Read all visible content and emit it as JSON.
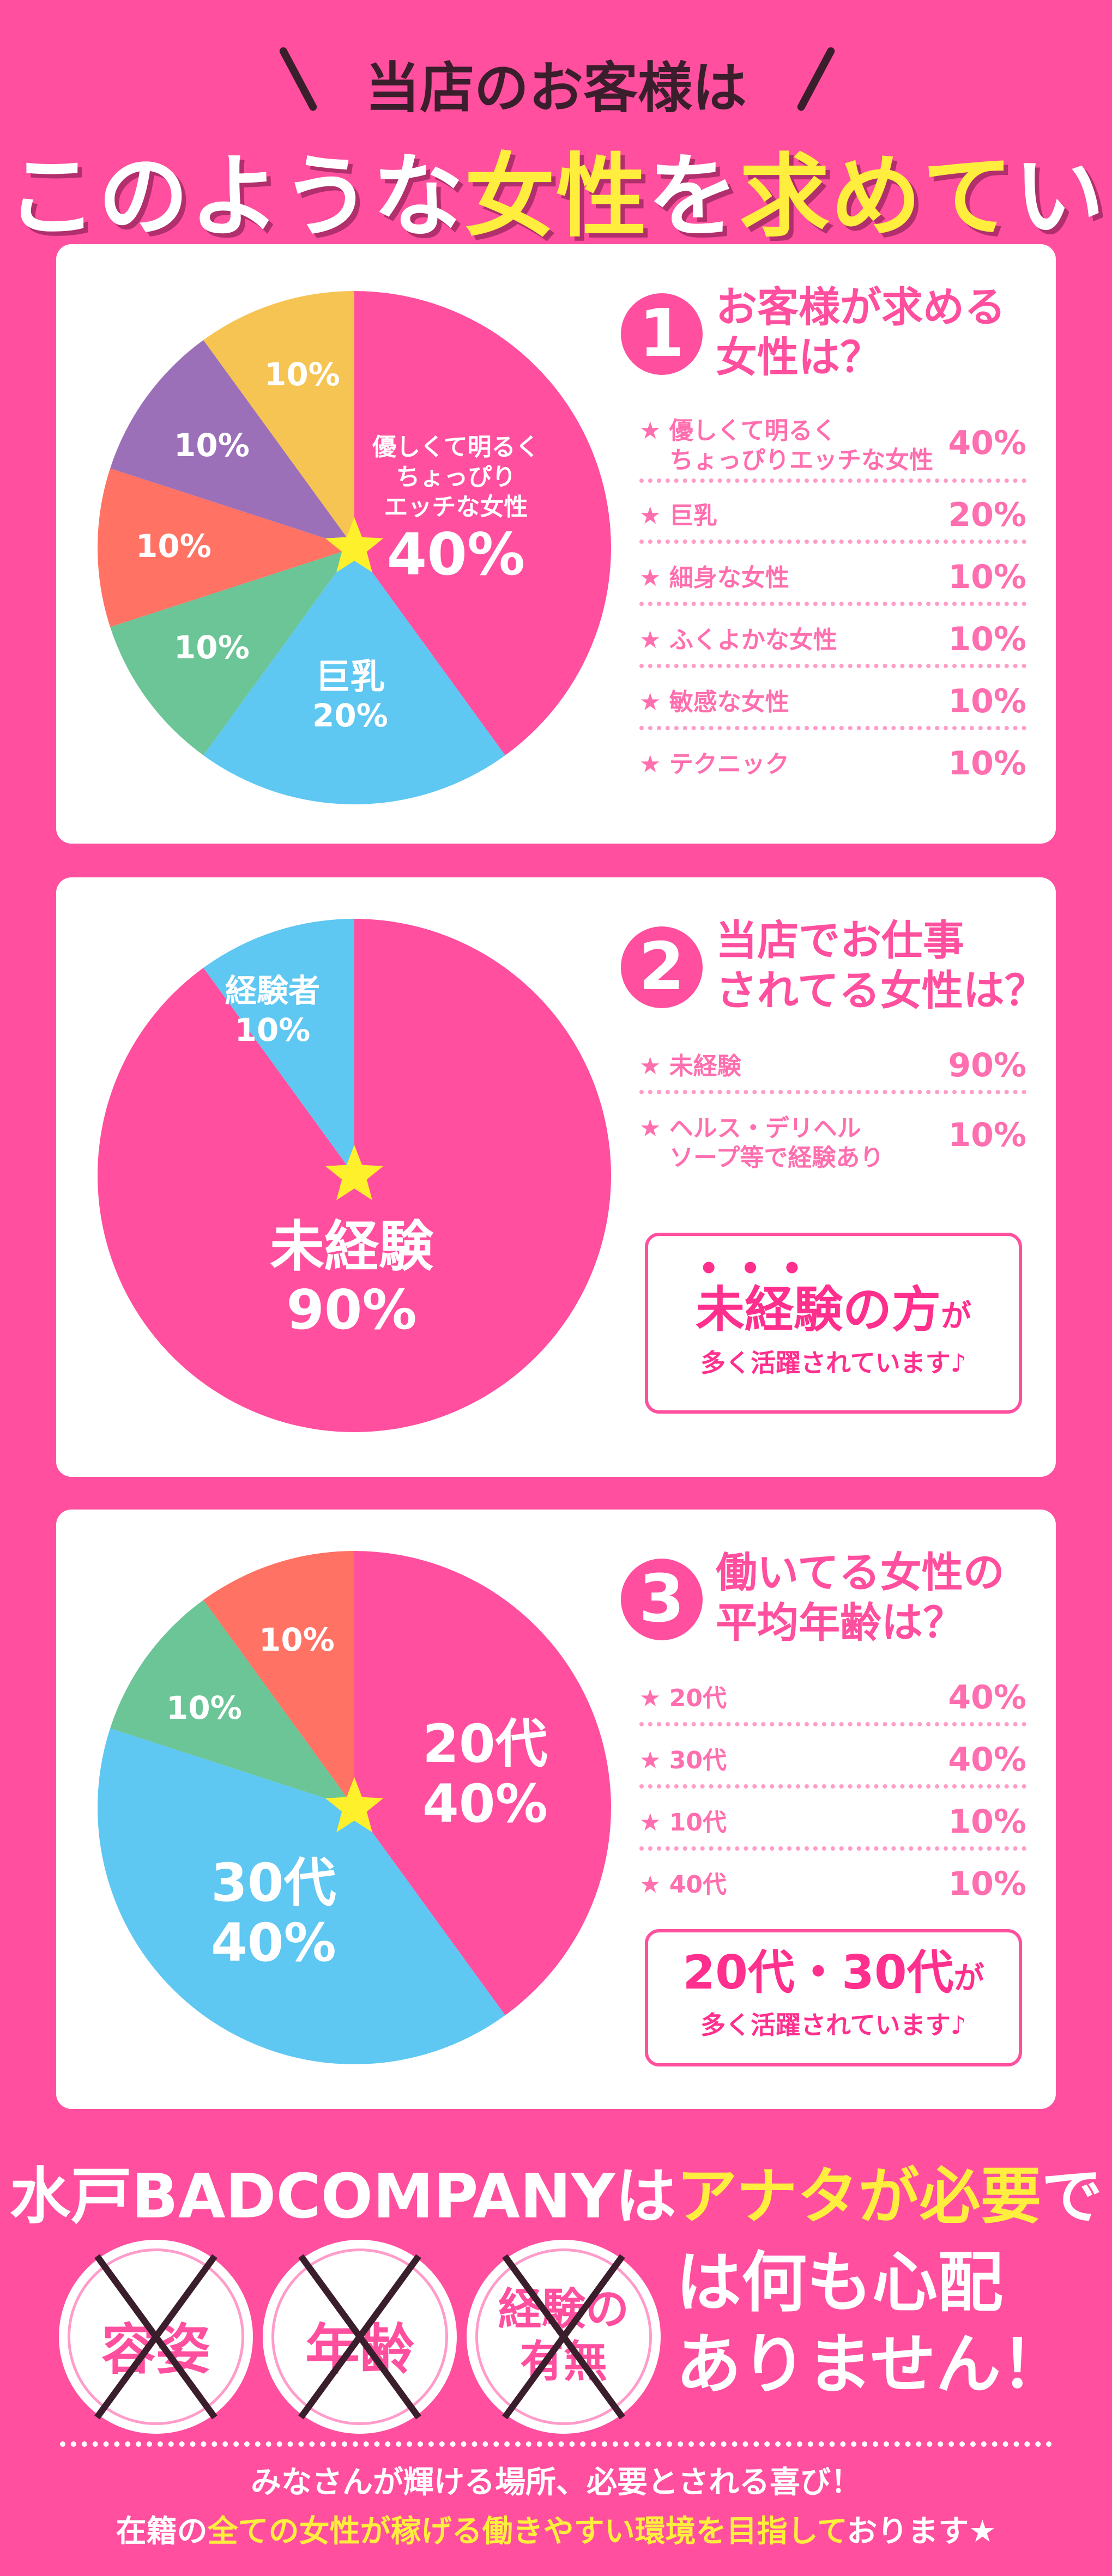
{
  "header": {
    "line1": "当店のお客様は",
    "line2_part1": "このような",
    "line2_part2": "女性",
    "line2_part3": "を",
    "line2_part4": "求めて",
    "line2_part5": "います"
  },
  "sections": [
    {
      "number": "1",
      "title_line1": "お客様が求める",
      "title_line2": "女性は？",
      "rows": [
        {
          "label_line1": "★ 優しくて明るく",
          "label_line2": "ちょっぴりエッチな女性",
          "value": "40%"
        },
        {
          "label_line1": "★ 巨乳",
          "label_line2": "",
          "value": "20%"
        },
        {
          "label_line1": "★ 細身な女性",
          "label_line2": "",
          "value": "10%"
        },
        {
          "label_line1": "★ ふくよかな女性",
          "label_line2": "",
          "value": "10%"
        },
        {
          "label_line1": "★ 敏感な女性",
          "label_line2": "",
          "value": "10%"
        },
        {
          "label_line1": "★ テクニック",
          "label_line2": "",
          "value": "10%"
        }
      ],
      "pie_labels": {
        "a1": "優しくて明るく",
        "a2": "ちょっぴり",
        "a3": "エッチな女性",
        "a4": "40%",
        "b1": "巨乳",
        "b2": "20%",
        "c": "10%",
        "d": "10%",
        "e": "10%",
        "f": "10%"
      }
    },
    {
      "number": "2",
      "title_line1": "当店でお仕事",
      "title_line2": "されてる女性は？",
      "rows": [
        {
          "label_line1": "★ 未経験",
          "label_line2": "",
          "value": "90%"
        },
        {
          "label_line1": "★ ヘルス・デリヘル",
          "label_line2": "ソープ等で経験あり",
          "value": "10%"
        }
      ],
      "pie_labels": {
        "a1": "未経験",
        "a2": "90%",
        "b1": "経験者",
        "b2": "10%"
      },
      "note_line1": "未経験の方",
      "note_line1_small": "が",
      "note_line2": "多く活躍されています♪"
    },
    {
      "number": "3",
      "title_line1": "働いてる女性の",
      "title_line2": "平均年齢は？",
      "rows": [
        {
          "label_line1": "★ 20代",
          "label_line2": "",
          "value": "40%"
        },
        {
          "label_line1": "★ 30代",
          "label_line2": "",
          "value": "40%"
        },
        {
          "label_line1": "★ 10代",
          "label_line2": "",
          "value": "10%"
        },
        {
          "label_line1": "★ 40代",
          "label_line2": "",
          "value": "10%"
        }
      ],
      "pie_labels": {
        "a1": "20代",
        "a2": "40%",
        "b1": "30代",
        "b2": "40%",
        "c": "10%",
        "d": "10%"
      },
      "note_line1": "20代・30代",
      "note_line1_small": "が",
      "note_line2": "多く活躍されています♪"
    }
  ],
  "chart_data": [
    {
      "type": "pie",
      "categories": [
        "優しくて明るくちょっぴりエッチな女性",
        "巨乳",
        "細身な女性",
        "ふくよかな女性",
        "敏感な女性",
        "テクニック"
      ],
      "values": [
        40,
        20,
        10,
        10,
        10,
        10
      ],
      "colors": [
        "#ff4f9e",
        "#5ec7f2",
        "#6bc596",
        "#ff7264",
        "#9b70b8",
        "#f6c452"
      ]
    },
    {
      "type": "pie",
      "categories": [
        "未経験",
        "経験者"
      ],
      "values": [
        90,
        10
      ],
      "colors": [
        "#ff4f9e",
        "#5ec7f2"
      ]
    },
    {
      "type": "pie",
      "categories": [
        "20代",
        "30代",
        "10代",
        "40代"
      ],
      "values": [
        40,
        40,
        10,
        10
      ],
      "colors": [
        "#ff4f9e",
        "#5ec7f2",
        "#6bc596",
        "#ff7264"
      ]
    }
  ],
  "banner": {
    "part1": "水戸BADCOMPANYは",
    "part2": "アナタが必要",
    "part3": "です"
  },
  "crossed": [
    {
      "line1": "容姿",
      "line2": ""
    },
    {
      "line1": "年齢",
      "line2": ""
    },
    {
      "line1": "経験の",
      "line2": "有無"
    }
  ],
  "worry": {
    "line1": "は何も心配",
    "line2": "ありません！"
  },
  "footer": {
    "line1": "みなさんが輝ける場所、必要とされる喜び！",
    "line2_part1": "在籍の",
    "line2_part2": "全ての女性が稼げる働きやすい環境を目指して",
    "line2_part3": "おります★"
  },
  "colors": {
    "pink": "#ff4f9e",
    "blue": "#5ec7f2",
    "green": "#6bc596",
    "coral": "#ff7264",
    "purple": "#9b70b8",
    "yellow": "#f6c452",
    "star": "#fff02c"
  }
}
